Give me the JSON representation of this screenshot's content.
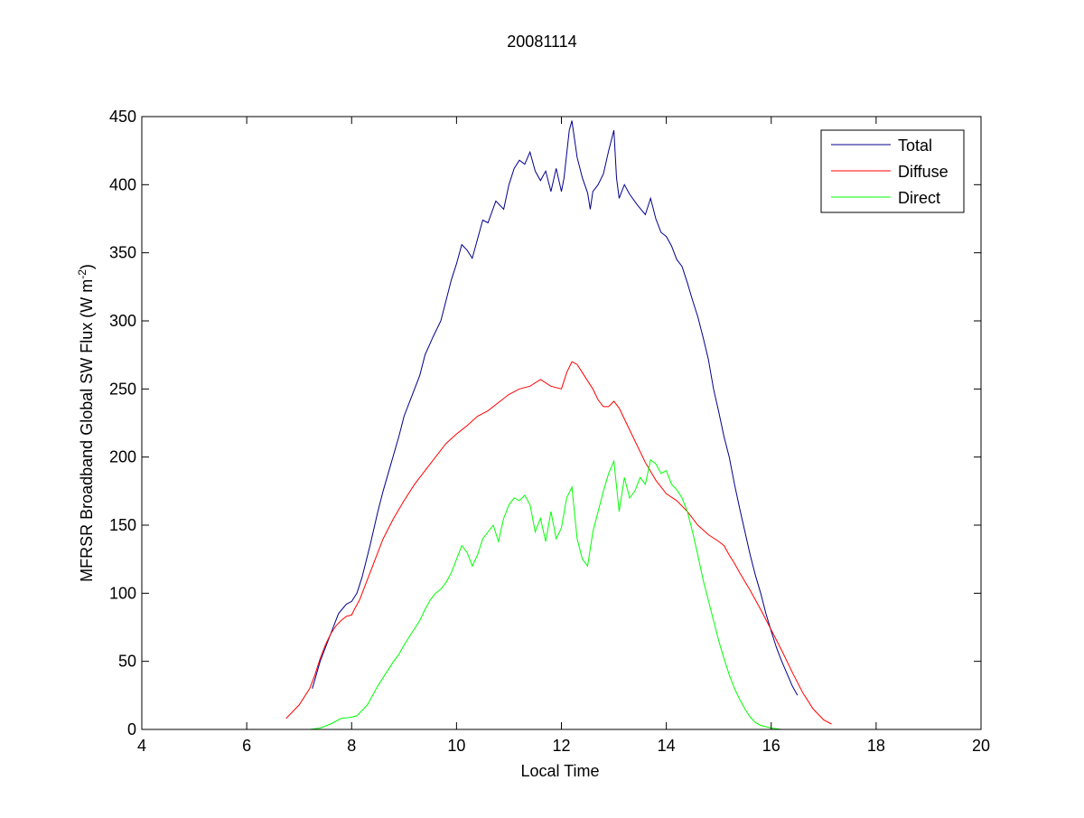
{
  "chart_data": {
    "type": "line",
    "title": "20081114",
    "xlabel": "Local Time",
    "ylabel": "MFRSR Broadband Global SW Flux (W m",
    "ylabel_sup": "-2",
    "ylabel_end": ")",
    "xlim": [
      4,
      20
    ],
    "ylim": [
      0,
      450
    ],
    "xticks": [
      4,
      6,
      8,
      10,
      12,
      14,
      16,
      18,
      20
    ],
    "yticks": [
      0,
      50,
      100,
      150,
      200,
      250,
      300,
      350,
      400,
      450
    ],
    "grid": false,
    "legend_position": "top-right",
    "series": [
      {
        "name": "Total",
        "color": "#00008B",
        "points": [
          [
            7.25,
            30
          ],
          [
            7.4,
            50
          ],
          [
            7.6,
            70
          ],
          [
            7.75,
            85
          ],
          [
            7.9,
            92
          ],
          [
            8.0,
            94
          ],
          [
            8.1,
            100
          ],
          [
            8.2,
            112
          ],
          [
            8.35,
            135
          ],
          [
            8.5,
            160
          ],
          [
            8.6,
            175
          ],
          [
            8.75,
            195
          ],
          [
            8.9,
            215
          ],
          [
            9.0,
            230
          ],
          [
            9.15,
            245
          ],
          [
            9.3,
            260
          ],
          [
            9.4,
            275
          ],
          [
            9.55,
            288
          ],
          [
            9.7,
            300
          ],
          [
            9.8,
            315
          ],
          [
            9.9,
            330
          ],
          [
            10.0,
            342
          ],
          [
            10.1,
            356
          ],
          [
            10.2,
            352
          ],
          [
            10.3,
            346
          ],
          [
            10.4,
            360
          ],
          [
            10.5,
            374
          ],
          [
            10.6,
            372
          ],
          [
            10.75,
            388
          ],
          [
            10.9,
            382
          ],
          [
            11.0,
            400
          ],
          [
            11.1,
            412
          ],
          [
            11.2,
            418
          ],
          [
            11.3,
            415
          ],
          [
            11.4,
            424
          ],
          [
            11.5,
            410
          ],
          [
            11.6,
            403
          ],
          [
            11.7,
            410
          ],
          [
            11.8,
            395
          ],
          [
            11.9,
            412
          ],
          [
            12.0,
            395
          ],
          [
            12.05,
            405
          ],
          [
            12.15,
            440
          ],
          [
            12.2,
            447
          ],
          [
            12.3,
            420
          ],
          [
            12.4,
            405
          ],
          [
            12.5,
            394
          ],
          [
            12.55,
            382
          ],
          [
            12.6,
            395
          ],
          [
            12.7,
            400
          ],
          [
            12.8,
            408
          ],
          [
            12.9,
            425
          ],
          [
            13.0,
            440
          ],
          [
            13.05,
            405
          ],
          [
            13.1,
            390
          ],
          [
            13.2,
            400
          ],
          [
            13.3,
            393
          ],
          [
            13.45,
            385
          ],
          [
            13.6,
            378
          ],
          [
            13.7,
            390
          ],
          [
            13.8,
            375
          ],
          [
            13.9,
            365
          ],
          [
            14.0,
            362
          ],
          [
            14.1,
            355
          ],
          [
            14.2,
            345
          ],
          [
            14.3,
            340
          ],
          [
            14.4,
            328
          ],
          [
            14.5,
            315
          ],
          [
            14.6,
            303
          ],
          [
            14.7,
            288
          ],
          [
            14.8,
            272
          ],
          [
            14.9,
            250
          ],
          [
            15.0,
            233
          ],
          [
            15.1,
            215
          ],
          [
            15.2,
            200
          ],
          [
            15.3,
            180
          ],
          [
            15.4,
            162
          ],
          [
            15.5,
            145
          ],
          [
            15.6,
            128
          ],
          [
            15.7,
            113
          ],
          [
            15.8,
            100
          ],
          [
            15.9,
            85
          ],
          [
            16.0,
            72
          ],
          [
            16.1,
            60
          ],
          [
            16.2,
            50
          ],
          [
            16.3,
            41
          ],
          [
            16.4,
            32
          ],
          [
            16.5,
            25
          ]
        ]
      },
      {
        "name": "Diffuse",
        "color": "#FF0000",
        "points": [
          [
            6.75,
            8
          ],
          [
            6.9,
            14
          ],
          [
            7.0,
            18
          ],
          [
            7.1,
            24
          ],
          [
            7.2,
            30
          ],
          [
            7.3,
            40
          ],
          [
            7.4,
            52
          ],
          [
            7.5,
            62
          ],
          [
            7.6,
            70
          ],
          [
            7.7,
            76
          ],
          [
            7.8,
            80
          ],
          [
            7.9,
            83
          ],
          [
            8.0,
            84
          ],
          [
            8.05,
            88
          ],
          [
            8.15,
            95
          ],
          [
            8.25,
            105
          ],
          [
            8.4,
            120
          ],
          [
            8.6,
            140
          ],
          [
            8.8,
            155
          ],
          [
            9.0,
            168
          ],
          [
            9.2,
            180
          ],
          [
            9.4,
            190
          ],
          [
            9.6,
            200
          ],
          [
            9.8,
            210
          ],
          [
            10.0,
            217
          ],
          [
            10.2,
            223
          ],
          [
            10.4,
            230
          ],
          [
            10.6,
            234
          ],
          [
            10.8,
            240
          ],
          [
            11.0,
            246
          ],
          [
            11.2,
            250
          ],
          [
            11.4,
            252
          ],
          [
            11.6,
            257
          ],
          [
            11.8,
            252
          ],
          [
            12.0,
            250
          ],
          [
            12.1,
            262
          ],
          [
            12.2,
            270
          ],
          [
            12.3,
            268
          ],
          [
            12.4,
            262
          ],
          [
            12.5,
            256
          ],
          [
            12.6,
            250
          ],
          [
            12.7,
            242
          ],
          [
            12.8,
            237
          ],
          [
            12.9,
            237
          ],
          [
            13.0,
            241
          ],
          [
            13.1,
            236
          ],
          [
            13.2,
            228
          ],
          [
            13.4,
            212
          ],
          [
            13.6,
            196
          ],
          [
            13.8,
            183
          ],
          [
            14.0,
            173
          ],
          [
            14.2,
            168
          ],
          [
            14.4,
            160
          ],
          [
            14.6,
            150
          ],
          [
            14.8,
            143
          ],
          [
            15.0,
            138
          ],
          [
            15.1,
            135
          ],
          [
            15.2,
            128
          ],
          [
            15.3,
            122
          ],
          [
            15.4,
            115
          ],
          [
            15.6,
            102
          ],
          [
            15.8,
            88
          ],
          [
            16.0,
            73
          ],
          [
            16.2,
            58
          ],
          [
            16.4,
            42
          ],
          [
            16.6,
            27
          ],
          [
            16.8,
            15
          ],
          [
            17.0,
            7
          ],
          [
            17.15,
            4
          ]
        ]
      },
      {
        "name": "Direct",
        "color": "#00FF00",
        "points": [
          [
            7.2,
            0
          ],
          [
            7.4,
            1
          ],
          [
            7.6,
            4
          ],
          [
            7.8,
            8
          ],
          [
            8.0,
            9
          ],
          [
            8.1,
            10
          ],
          [
            8.2,
            14
          ],
          [
            8.3,
            18
          ],
          [
            8.4,
            25
          ],
          [
            8.5,
            32
          ],
          [
            8.6,
            38
          ],
          [
            8.7,
            44
          ],
          [
            8.8,
            50
          ],
          [
            8.9,
            55
          ],
          [
            9.0,
            62
          ],
          [
            9.1,
            68
          ],
          [
            9.2,
            74
          ],
          [
            9.3,
            80
          ],
          [
            9.4,
            88
          ],
          [
            9.5,
            95
          ],
          [
            9.6,
            100
          ],
          [
            9.7,
            103
          ],
          [
            9.8,
            108
          ],
          [
            9.9,
            115
          ],
          [
            10.0,
            125
          ],
          [
            10.1,
            135
          ],
          [
            10.2,
            130
          ],
          [
            10.3,
            120
          ],
          [
            10.4,
            128
          ],
          [
            10.5,
            140
          ],
          [
            10.6,
            145
          ],
          [
            10.7,
            150
          ],
          [
            10.8,
            138
          ],
          [
            10.9,
            155
          ],
          [
            11.0,
            165
          ],
          [
            11.1,
            170
          ],
          [
            11.2,
            168
          ],
          [
            11.3,
            172
          ],
          [
            11.4,
            165
          ],
          [
            11.5,
            145
          ],
          [
            11.6,
            155
          ],
          [
            11.7,
            138
          ],
          [
            11.8,
            160
          ],
          [
            11.9,
            140
          ],
          [
            12.0,
            148
          ],
          [
            12.1,
            170
          ],
          [
            12.2,
            178
          ],
          [
            12.3,
            140
          ],
          [
            12.4,
            125
          ],
          [
            12.5,
            120
          ],
          [
            12.6,
            145
          ],
          [
            12.7,
            160
          ],
          [
            12.8,
            175
          ],
          [
            12.9,
            188
          ],
          [
            13.0,
            197
          ],
          [
            13.1,
            160
          ],
          [
            13.2,
            185
          ],
          [
            13.3,
            170
          ],
          [
            13.4,
            175
          ],
          [
            13.5,
            185
          ],
          [
            13.6,
            180
          ],
          [
            13.7,
            198
          ],
          [
            13.8,
            195
          ],
          [
            13.9,
            188
          ],
          [
            14.0,
            190
          ],
          [
            14.1,
            180
          ],
          [
            14.2,
            176
          ],
          [
            14.3,
            170
          ],
          [
            14.4,
            160
          ],
          [
            14.5,
            145
          ],
          [
            14.6,
            128
          ],
          [
            14.7,
            110
          ],
          [
            14.8,
            95
          ],
          [
            14.9,
            80
          ],
          [
            15.0,
            65
          ],
          [
            15.1,
            52
          ],
          [
            15.2,
            40
          ],
          [
            15.3,
            30
          ],
          [
            15.4,
            22
          ],
          [
            15.5,
            15
          ],
          [
            15.6,
            9
          ],
          [
            15.7,
            5
          ],
          [
            15.8,
            3
          ],
          [
            16.0,
            1
          ],
          [
            16.2,
            0
          ]
        ]
      }
    ]
  }
}
